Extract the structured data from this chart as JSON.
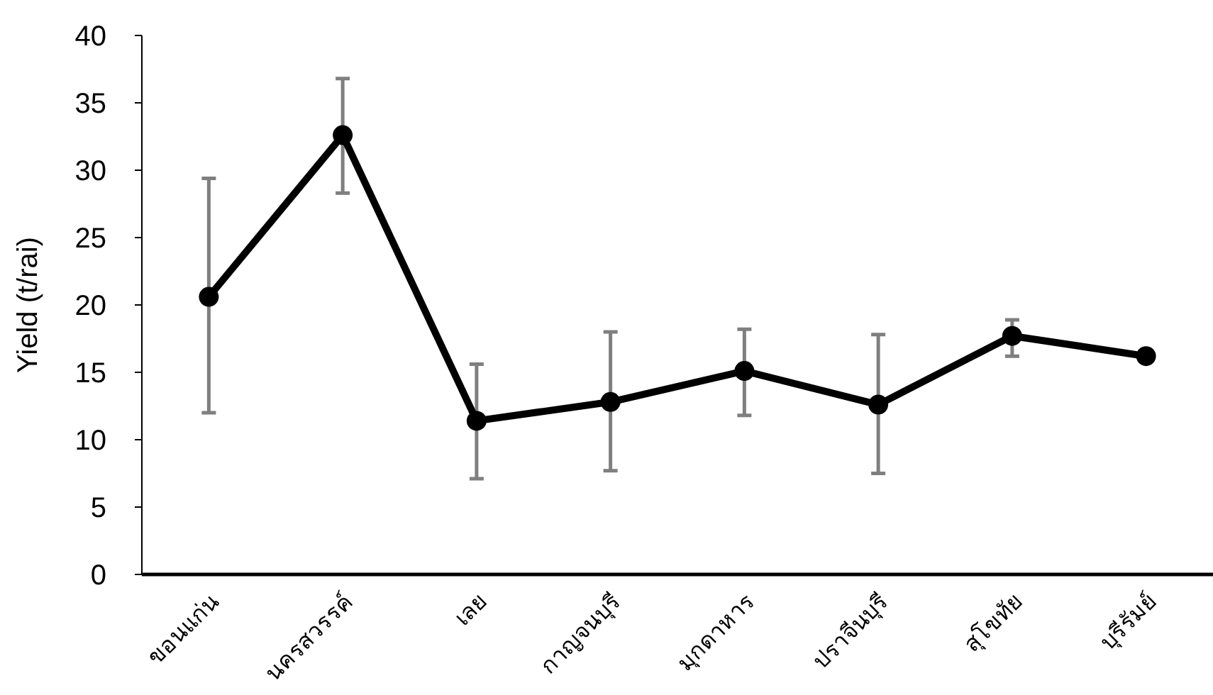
{
  "chart_data": {
    "type": "line",
    "ylabel": "Yield (t/rai)",
    "categories": [
      "ขอนแก่น",
      "นครสวรรค์",
      "เลย",
      "กาญจนบุรี",
      "มุกดาหาร",
      "ปราจีนบุรี",
      "สุโขทัย",
      "บุรีรัมย์"
    ],
    "values": [
      20.6,
      32.6,
      11.4,
      12.8,
      15.1,
      12.6,
      17.7,
      16.2
    ],
    "errors": [
      [
        12.0,
        29.4
      ],
      [
        28.3,
        36.8
      ],
      [
        7.1,
        15.6
      ],
      [
        7.7,
        18.0
      ],
      [
        11.8,
        18.2
      ],
      [
        7.5,
        17.8
      ],
      [
        16.2,
        18.9
      ],
      null
    ],
    "color": "#000000",
    "marker": "circle",
    "line_style": "solid",
    "ylim": [
      0,
      40
    ],
    "yticks": [
      0,
      5,
      10,
      15,
      20,
      25,
      30,
      35,
      40
    ]
  }
}
